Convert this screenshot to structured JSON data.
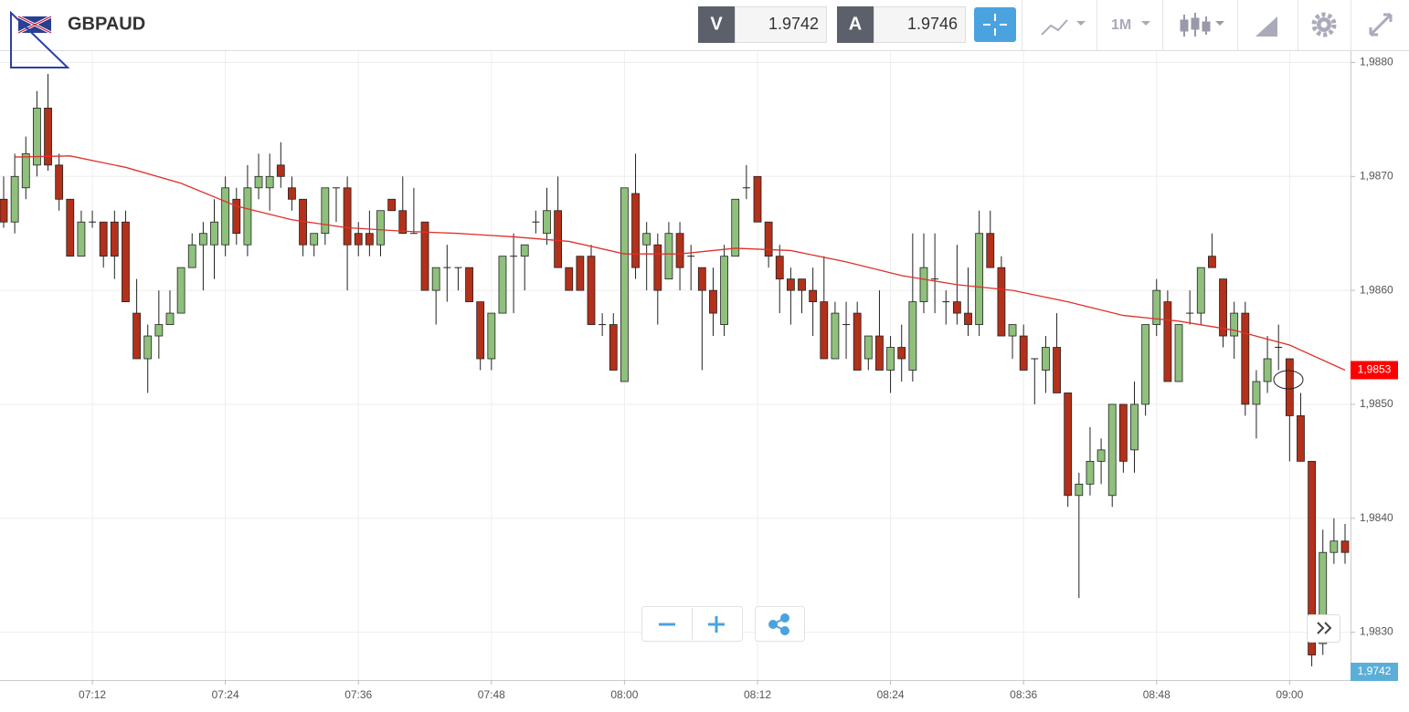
{
  "header": {
    "symbol": "GBPAUD",
    "sell_label": "V",
    "sell_price": "1.9742",
    "buy_label": "A",
    "buy_price": "1.9746",
    "timeframe": "1M"
  },
  "chart_data": {
    "type": "candlestick",
    "x": [
      "07:04",
      "07:05",
      "07:06",
      "07:07",
      "07:08",
      "07:09",
      "07:10",
      "07:11",
      "07:12",
      "07:13",
      "07:14",
      "07:15",
      "07:16",
      "07:17",
      "07:18",
      "07:19",
      "07:20",
      "07:21",
      "07:22",
      "07:23",
      "07:24",
      "07:25",
      "07:26",
      "07:27",
      "07:28",
      "07:29",
      "07:30",
      "07:31",
      "07:32",
      "07:33",
      "07:34",
      "07:35",
      "07:36",
      "07:37",
      "07:38",
      "07:39",
      "07:40",
      "07:41",
      "07:42",
      "07:43",
      "07:44",
      "07:45",
      "07:46",
      "07:47",
      "07:48",
      "07:49",
      "07:50",
      "07:51",
      "07:52",
      "07:53",
      "07:54",
      "07:55",
      "07:56",
      "07:57",
      "07:58",
      "07:59",
      "08:00",
      "08:01",
      "08:02",
      "08:03",
      "08:04",
      "08:05",
      "08:06",
      "08:07",
      "08:08",
      "08:09",
      "08:10",
      "08:11",
      "08:12",
      "08:13",
      "08:14",
      "08:15",
      "08:16",
      "08:17",
      "08:18",
      "08:19",
      "08:20",
      "08:21",
      "08:22",
      "08:23",
      "08:24",
      "08:25",
      "08:26",
      "08:27",
      "08:28",
      "08:29",
      "08:30",
      "08:31",
      "08:32",
      "08:33",
      "08:34",
      "08:35",
      "08:36",
      "08:37",
      "08:38",
      "08:39",
      "08:40",
      "08:41",
      "08:42",
      "08:43",
      "08:44",
      "08:45",
      "08:46",
      "08:47",
      "08:48",
      "08:49",
      "08:50",
      "08:51",
      "08:52",
      "08:53",
      "08:54",
      "08:55",
      "08:56",
      "08:57",
      "08:58",
      "08:59",
      "09:00",
      "09:01",
      "09:02",
      "09:03",
      "09:04",
      "09:05"
    ],
    "open": [
      1.9868,
      1.9866,
      1.9869,
      1.9871,
      1.9876,
      1.9871,
      1.9868,
      1.9863,
      1.9866,
      1.9866,
      1.9866,
      1.9866,
      1.9858,
      1.9854,
      1.9856,
      1.9857,
      1.9858,
      1.9862,
      1.9864,
      1.9864,
      1.9864,
      1.9868,
      1.9864,
      1.9869,
      1.9869,
      1.9871,
      1.9869,
      1.9868,
      1.9864,
      1.9865,
      1.9869,
      1.9869,
      1.9865,
      1.9865,
      1.9864,
      1.9868,
      1.9867,
      1.9865,
      1.9866,
      1.986,
      1.9862,
      1.9862,
      1.9862,
      1.9859,
      1.9854,
      1.9858,
      1.9863,
      1.9863,
      1.9866,
      1.9865,
      1.9867,
      1.9862,
      1.9863,
      1.9863,
      1.9857,
      1.9857,
      1.9852,
      1.98685,
      1.9864,
      1.9864,
      1.9861,
      1.9865,
      1.9863,
      1.9862,
      1.986,
      1.9857,
      1.9863,
      1.9869,
      1.987,
      1.9866,
      1.9863,
      1.9861,
      1.9861,
      1.986,
      1.9859,
      1.9854,
      1.9857,
      1.9858,
      1.9854,
      1.9856,
      1.9853,
      1.9855,
      1.9853,
      1.9859,
      1.9861,
      1.9859,
      1.9859,
      1.9858,
      1.9857,
      1.9865,
      1.9862,
      1.9856,
      1.9856,
      1.9854,
      1.9853,
      1.9855,
      1.9851,
      1.9842,
      1.9843,
      1.9845,
      1.9842,
      1.985,
      1.9846,
      1.985,
      1.9857,
      1.9859,
      1.9852,
      1.9858,
      1.9858,
      1.9863,
      1.9861,
      1.9856,
      1.9858,
      1.985,
      1.9852,
      1.9855,
      1.9854,
      1.9849,
      1.9845,
      1.9829,
      1.9837,
      1.9838
    ],
    "high": [
      1.987,
      1.9872,
      1.98735,
      1.98775,
      1.9879,
      1.9872,
      1.9868,
      1.9867,
      1.9867,
      1.9866,
      1.9867,
      1.9867,
      1.9861,
      1.9857,
      1.986,
      1.986,
      1.9862,
      1.9865,
      1.9866,
      1.9868,
      1.987,
      1.9869,
      1.9871,
      1.9872,
      1.9872,
      1.9873,
      1.987,
      1.9868,
      1.9865,
      1.9869,
      1.9869,
      1.987,
      1.9866,
      1.9867,
      1.9867,
      1.9868,
      1.987,
      1.9869,
      1.9866,
      1.9862,
      1.9864,
      1.9862,
      1.9862,
      1.9859,
      1.9858,
      1.9863,
      1.9865,
      1.9864,
      1.9867,
      1.9869,
      1.987,
      1.9862,
      1.9863,
      1.9864,
      1.9858,
      1.9858,
      1.9869,
      1.9872,
      1.9866,
      1.9865,
      1.9866,
      1.9866,
      1.9864,
      1.9862,
      1.9862,
      1.9864,
      1.9868,
      1.9871,
      1.987,
      1.9866,
      1.9864,
      1.9862,
      1.9861,
      1.9862,
      1.9863,
      1.9859,
      1.9859,
      1.9859,
      1.9856,
      1.986,
      1.9856,
      1.9857,
      1.9865,
      1.9865,
      1.9865,
      1.986,
      1.9864,
      1.9862,
      1.9867,
      1.9867,
      1.9863,
      1.9857,
      1.9857,
      1.9854,
      1.9856,
      1.9858,
      1.9851,
      1.9844,
      1.9848,
      1.9847,
      1.985,
      1.985,
      1.9852,
      1.9857,
      1.9861,
      1.986,
      1.9857,
      1.986,
      1.9862,
      1.9865,
      1.9861,
      1.9859,
      1.9859,
      1.9853,
      1.9856,
      1.9857,
      1.9854,
      1.9851,
      1.9845,
      1.9839,
      1.984,
      1.98395
    ],
    "low": [
      1.98655,
      1.9865,
      1.9868,
      1.987,
      1.98705,
      1.9867,
      1.9863,
      1.9863,
      1.98655,
      1.9862,
      1.9861,
      1.9859,
      1.9854,
      1.9851,
      1.9854,
      1.9857,
      1.9858,
      1.9862,
      1.986,
      1.9861,
      1.9863,
      1.9864,
      1.9863,
      1.9868,
      1.9867,
      1.9869,
      1.9867,
      1.9863,
      1.9863,
      1.9864,
      1.9866,
      1.986,
      1.9863,
      1.9863,
      1.9863,
      1.9867,
      1.9865,
      1.9865,
      1.986,
      1.9857,
      1.9859,
      1.986,
      1.9859,
      1.9853,
      1.9853,
      1.9858,
      1.9858,
      1.986,
      1.9865,
      1.9864,
      1.9862,
      1.986,
      1.986,
      1.9857,
      1.9856,
      1.9853,
      1.9852,
      1.9861,
      1.986,
      1.9857,
      1.9861,
      1.986,
      1.986,
      1.9853,
      1.9856,
      1.9856,
      1.9863,
      1.9868,
      1.9866,
      1.9862,
      1.9858,
      1.9857,
      1.9858,
      1.9856,
      1.9854,
      1.9854,
      1.9854,
      1.9853,
      1.9853,
      1.9853,
      1.9851,
      1.9852,
      1.9852,
      1.9858,
      1.9858,
      1.9857,
      1.9857,
      1.9856,
      1.9856,
      1.9862,
      1.9856,
      1.9854,
      1.9853,
      1.985,
      1.9851,
      1.9851,
      1.9841,
      1.9833,
      1.9842,
      1.9843,
      1.9841,
      1.9844,
      1.9844,
      1.9849,
      1.9856,
      1.9852,
      1.9852,
      1.9857,
      1.9857,
      1.9862,
      1.9855,
      1.9854,
      1.9849,
      1.9847,
      1.9851,
      1.9853,
      1.9845,
      1.9845,
      1.9827,
      1.9828,
      1.9836,
      1.9836
    ],
    "close": [
      1.9866,
      1.987,
      1.9872,
      1.9876,
      1.9871,
      1.9868,
      1.9863,
      1.9866,
      1.9866,
      1.9863,
      1.9863,
      1.9859,
      1.9854,
      1.9856,
      1.9857,
      1.9858,
      1.9862,
      1.9864,
      1.9865,
      1.9866,
      1.9869,
      1.9865,
      1.9869,
      1.987,
      1.987,
      1.987,
      1.9868,
      1.9864,
      1.9865,
      1.9869,
      1.9869,
      1.9864,
      1.9864,
      1.9864,
      1.9867,
      1.9867,
      1.9865,
      1.9865,
      1.986,
      1.9862,
      1.9862,
      1.9862,
      1.9859,
      1.9854,
      1.9858,
      1.9863,
      1.9863,
      1.9864,
      1.9866,
      1.9867,
      1.9862,
      1.986,
      1.986,
      1.9857,
      1.9857,
      1.9853,
      1.9869,
      1.9862,
      1.9865,
      1.986,
      1.9865,
      1.9862,
      1.9863,
      1.986,
      1.9858,
      1.9863,
      1.9868,
      1.9869,
      1.9866,
      1.9863,
      1.9861,
      1.986,
      1.986,
      1.9859,
      1.9854,
      1.9858,
      1.9857,
      1.9853,
      1.9856,
      1.9853,
      1.9855,
      1.9854,
      1.9859,
      1.9862,
      1.9861,
      1.9859,
      1.9858,
      1.9857,
      1.9865,
      1.9862,
      1.9856,
      1.9857,
      1.9853,
      1.9854,
      1.9855,
      1.9851,
      1.9842,
      1.9843,
      1.9845,
      1.9846,
      1.985,
      1.9845,
      1.985,
      1.9857,
      1.986,
      1.9852,
      1.9857,
      1.9858,
      1.9862,
      1.9862,
      1.9856,
      1.9858,
      1.985,
      1.9852,
      1.9854,
      1.9855,
      1.9849,
      1.9845,
      1.9828,
      1.9837,
      1.9838,
      1.9837
    ],
    "up_color": "#8fc07c",
    "down_color": "#b3301a",
    "series": [
      {
        "color": "#e0302a",
        "last_label": "1,9853",
        "x": [
          "07:05",
          "07:10",
          "07:15",
          "07:20",
          "07:25",
          "07:30",
          "07:35",
          "07:40",
          "07:45",
          "07:50",
          "07:55",
          "08:00",
          "08:05",
          "08:10",
          "08:15",
          "08:20",
          "08:25",
          "08:30",
          "08:35",
          "08:40",
          "08:45",
          "08:50",
          "08:55",
          "09:00",
          "09:05"
        ],
        "values": [
          1.98717,
          1.98718,
          1.98708,
          1.98694,
          1.98674,
          1.98662,
          1.98655,
          1.98652,
          1.9865,
          1.98647,
          1.98643,
          1.98632,
          1.98632,
          1.98637,
          1.98635,
          1.98625,
          1.98613,
          1.98605,
          1.986,
          1.9859,
          1.98578,
          1.98573,
          1.98565,
          1.98552,
          1.9853
        ]
      }
    ],
    "bid_label": "1,9742",
    "xlim": [
      "07:04",
      "09:05"
    ],
    "xticks": [
      "07:12",
      "07:24",
      "07:36",
      "07:48",
      "08:00",
      "08:12",
      "08:24",
      "08:36",
      "08:48",
      "09:00"
    ],
    "ylim": [
      1.98258,
      1.9881
    ],
    "yticks": [
      {
        "value": 1.983,
        "label": "1,9830"
      },
      {
        "value": 1.984,
        "label": "1,9840"
      },
      {
        "value": 1.985,
        "label": "1,9850"
      },
      {
        "value": 1.986,
        "label": "1,9860"
      },
      {
        "value": 1.987,
        "label": "1,9870"
      },
      {
        "value": 1.988,
        "label": "1,9880"
      }
    ],
    "grid": true
  }
}
